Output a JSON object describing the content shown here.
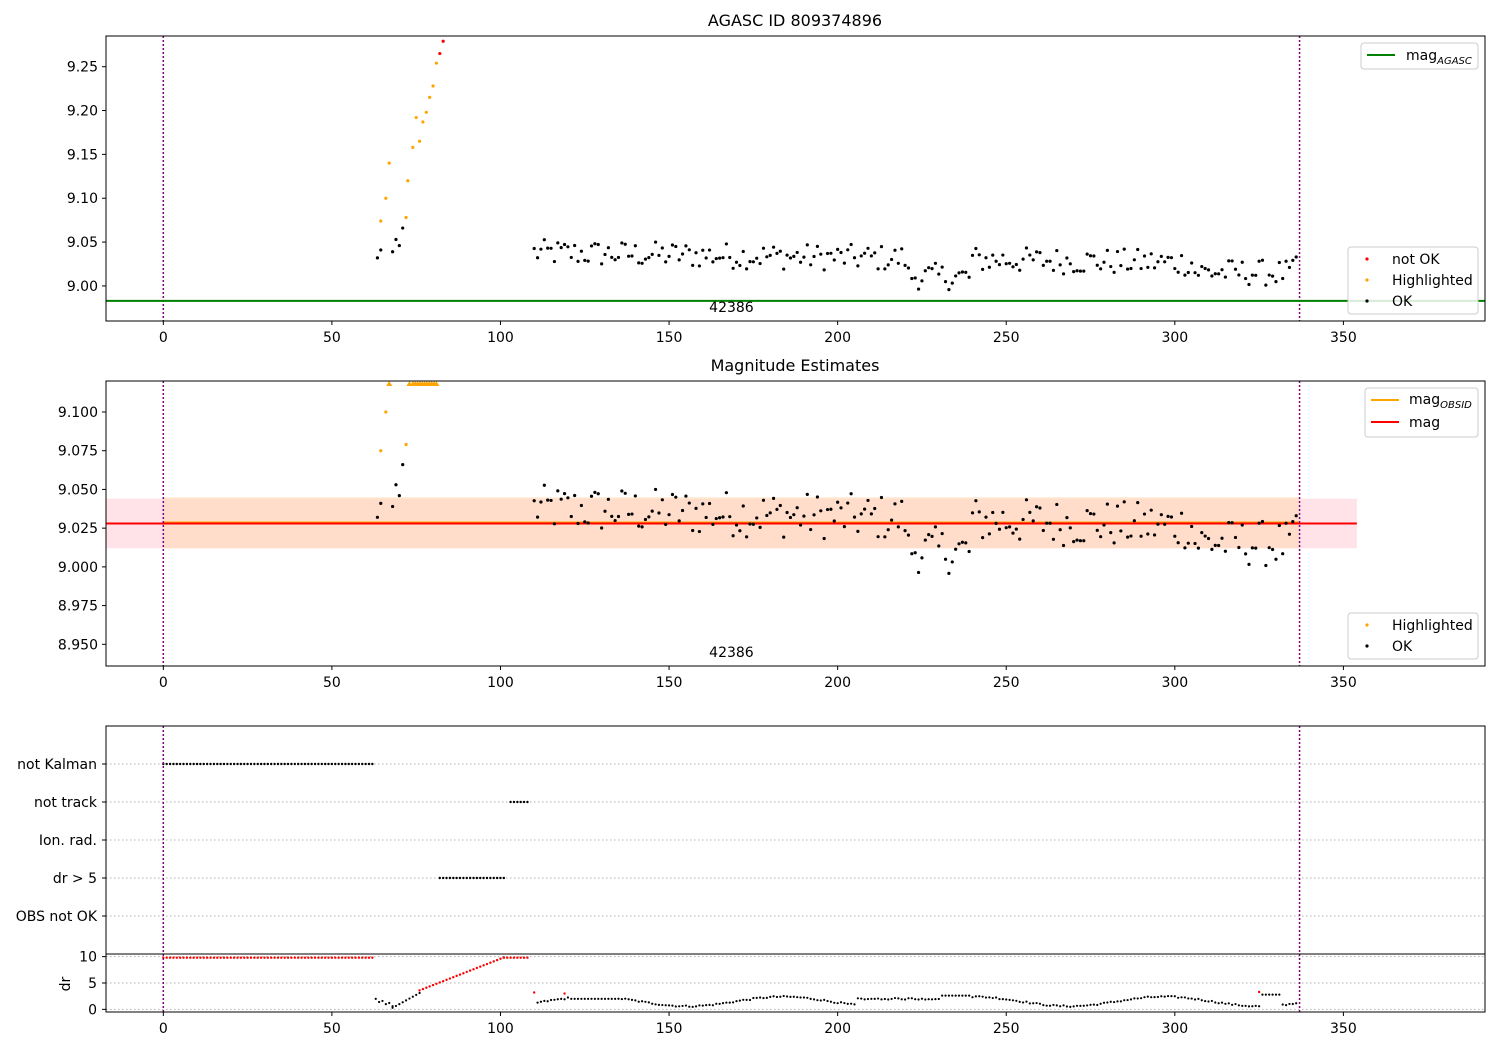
{
  "colors": {
    "ok": "#000000",
    "not_ok": "#ff0000",
    "highlighted": "#ffa500",
    "mag_agasc": "#008000",
    "mag": "#ff0000",
    "mag_obsid": "#ffa500",
    "obsid_boundary": "#800080",
    "band_mag": "#ffc0cb",
    "band_obsid": "#ffd8b0",
    "grid": "#b0b0b0"
  },
  "chart_data": [
    {
      "type": "scatter",
      "title": "AGASC ID 809374896",
      "xlim": [
        -17,
        392
      ],
      "ylim": [
        8.96,
        9.285
      ],
      "xticks": [
        0,
        50,
        100,
        150,
        200,
        250,
        300,
        350
      ],
      "yticks": [
        9.0,
        9.05,
        9.1,
        9.15,
        9.2,
        9.25
      ],
      "ytick_labels": [
        "9.00",
        "9.05",
        "9.10",
        "9.15",
        "9.20",
        "9.25"
      ],
      "obsid_boundaries": [
        0,
        337
      ],
      "obsid_labels": [
        {
          "text": "42386",
          "x": 168.5
        }
      ],
      "hlines": [
        {
          "name": "mag_AGASC",
          "y": 8.983,
          "color": "mag_agasc"
        }
      ],
      "legend_upper": [
        {
          "label": "mag",
          "sub": "AGASC",
          "color": "mag_agasc",
          "style": "line"
        }
      ],
      "legend_lower": [
        {
          "label": "not OK",
          "color": "not_ok",
          "style": "dot"
        },
        {
          "label": "Highlighted",
          "color": "highlighted",
          "style": "dot"
        },
        {
          "label": "OK",
          "color": "ok",
          "style": "dot"
        }
      ],
      "series": [
        {
          "name": "not OK",
          "color": "not_ok",
          "x": [
            82,
            83
          ],
          "y": [
            9.265,
            9.279
          ]
        },
        {
          "name": "Highlighted",
          "color": "highlighted",
          "x": [
            64.5,
            66,
            67,
            72,
            72.5,
            74,
            75,
            76,
            77,
            78,
            79,
            80,
            81
          ],
          "y": [
            9.074,
            9.1,
            9.14,
            9.078,
            9.12,
            9.158,
            9.192,
            9.165,
            9.187,
            9.198,
            9.215,
            9.228,
            9.254
          ]
        },
        {
          "name": "OK",
          "color": "ok",
          "x": [],
          "y": []
        }
      ]
    },
    {
      "type": "scatter",
      "title": "Magnitude Estimates",
      "xlim": [
        -17,
        392
      ],
      "ylim": [
        8.936,
        9.12
      ],
      "xticks": [
        0,
        50,
        100,
        150,
        200,
        250,
        300,
        350
      ],
      "yticks": [
        8.95,
        8.975,
        9.0,
        9.025,
        9.05,
        9.075,
        9.1
      ],
      "ytick_labels": [
        "8.950",
        "8.975",
        "9.000",
        "9.025",
        "9.050",
        "9.075",
        "9.100"
      ],
      "obsid_boundaries": [
        0,
        337
      ],
      "obsid_labels": [
        {
          "text": "42386",
          "x": 168.5
        }
      ],
      "mag": 9.028,
      "mag_band": [
        9.012,
        9.044
      ],
      "mag_band_x": [
        -17,
        354
      ],
      "obsid_band": [
        9.012,
        9.045
      ],
      "obsid_band_x": [
        0,
        337
      ],
      "legend_upper": [
        {
          "label": "mag",
          "sub": "OBSID",
          "color": "mag_obsid",
          "style": "line"
        },
        {
          "label": "mag",
          "sub": "",
          "color": "mag",
          "style": "line"
        }
      ],
      "legend_lower": [
        {
          "label": "Highlighted",
          "color": "highlighted",
          "style": "dot"
        },
        {
          "label": "OK",
          "color": "ok",
          "style": "dot"
        }
      ],
      "series": [
        {
          "name": "Highlighted",
          "color": "highlighted",
          "x": [
            64.5,
            66,
            72
          ],
          "y": [
            9.075,
            9.1,
            9.079
          ]
        },
        {
          "name": "Highlighted (above range)",
          "color": "highlighted",
          "x": [
            67,
            73,
            74,
            74.7,
            75.4,
            76.1,
            76.8,
            77.5,
            78.2,
            78.9,
            79.6,
            80.3,
            81
          ],
          "y": [
            9.12,
            9.12,
            9.12,
            9.12,
            9.12,
            9.12,
            9.12,
            9.12,
            9.12,
            9.12,
            9.12,
            9.12,
            9.12
          ]
        },
        {
          "name": "OK",
          "color": "ok",
          "x": [],
          "y": []
        }
      ]
    },
    {
      "type": "scatter",
      "title": "",
      "xlim": [
        -17,
        392
      ],
      "xticks": [
        0,
        50,
        100,
        150,
        200,
        250,
        300,
        350
      ],
      "obsid_boundaries": [
        0,
        337
      ],
      "flag_categories": [
        "not Kalman",
        "not track",
        "Ion. rad.",
        "dr > 5",
        "OBS not OK"
      ],
      "flags": [
        {
          "category": "not Kalman",
          "x_ranges": [
            [
              0,
              62
            ]
          ]
        },
        {
          "category": "not track",
          "x_ranges": [
            [
              103,
              108
            ]
          ]
        },
        {
          "category": "Ion. rad.",
          "x_ranges": []
        },
        {
          "category": "dr > 5",
          "x_ranges": [
            [
              82,
              101
            ]
          ]
        },
        {
          "category": "OBS not OK",
          "x_ranges": []
        }
      ],
      "dr": {
        "ylabel": "dr",
        "ylim": [
          -0.5,
          10.5
        ],
        "yticks": [
          0,
          5,
          10
        ],
        "ytick_labels": [
          "0",
          "5",
          "10"
        ],
        "threshold": 5,
        "red_x_ranges": [
          [
            0,
            62
          ],
          [
            76,
            101
          ],
          [
            101,
            108
          ]
        ],
        "red_points": [
          {
            "x": 110,
            "y": 3.2
          },
          {
            "x": 119,
            "y": 3.0
          },
          {
            "x": 325,
            "y": 3.3
          }
        ]
      }
    }
  ]
}
